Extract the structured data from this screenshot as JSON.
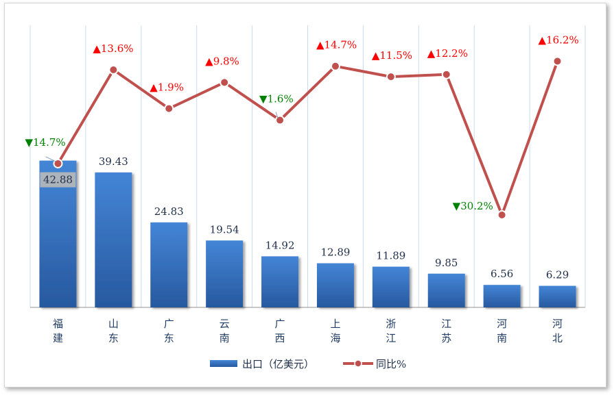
{
  "chart_data": {
    "type": "bar",
    "title": "",
    "xlabel": "",
    "ylabel": "",
    "grid": "vertical",
    "legend_position": "bottom",
    "categories": [
      "福建",
      "山东",
      "广东",
      "云南",
      "广西",
      "上海",
      "浙江",
      "江苏",
      "河南",
      "河北"
    ],
    "series": [
      {
        "name": "出口（亿美元）",
        "kind": "bar",
        "color": "#2f6fbf",
        "values": [
          42.88,
          39.43,
          24.83,
          19.54,
          14.92,
          12.89,
          11.89,
          9.85,
          6.56,
          6.29
        ],
        "labels": [
          "42.88",
          "39.43",
          "24.83",
          "19.54",
          "14.92",
          "12.89",
          "11.89",
          "9.85",
          "6.56",
          "6.29"
        ],
        "ylim": [
          0,
          50
        ]
      },
      {
        "name": "同比%",
        "kind": "line",
        "color": "#c0504d",
        "values": [
          -14.7,
          13.6,
          1.9,
          9.8,
          -1.6,
          14.7,
          11.5,
          12.2,
          -30.2,
          16.2
        ],
        "labels": [
          "14.7%",
          "13.6%",
          "1.9%",
          "9.8%",
          "1.6%",
          "14.7%",
          "11.5%",
          "12.2%",
          "30.2%",
          "16.2%"
        ],
        "ylim": [
          -40,
          20
        ]
      }
    ],
    "colors": {
      "up": "#ff0000",
      "down": "#008000"
    },
    "icons": {
      "up": "▲",
      "down": "▼"
    }
  }
}
